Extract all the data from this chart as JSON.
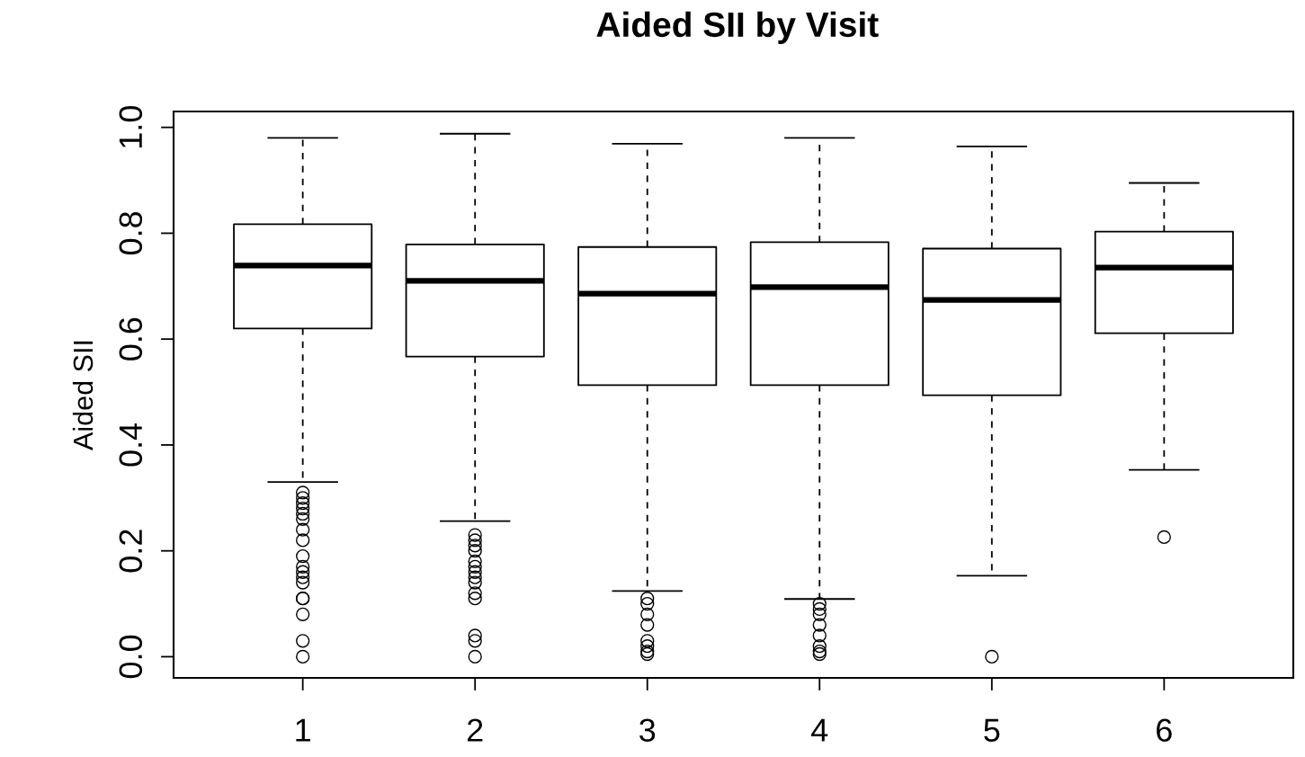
{
  "chart_data": {
    "type": "box",
    "title": "Aided SII by Visit",
    "ylabel": "Aided SII",
    "categories": [
      "1",
      "2",
      "3",
      "4",
      "5",
      "6"
    ],
    "ylim": [
      -0.04,
      1.03
    ],
    "yticks": [
      {
        "value": 0,
        "label": "0.0"
      },
      {
        "value": 0.2,
        "label": "0.2"
      },
      {
        "value": 0.4,
        "label": "0.4"
      },
      {
        "value": 0.6,
        "label": "0.6"
      },
      {
        "value": 0.8,
        "label": "0.8"
      },
      {
        "value": 1.0,
        "label": "1.0"
      }
    ],
    "grid": false,
    "marker": "circle",
    "boxes": [
      {
        "low": 0.33,
        "q1": 0.62,
        "median": 0.739,
        "q3": 0.817,
        "high": 0.98,
        "outliers": [
          0.31,
          0.3,
          0.29,
          0.28,
          0.27,
          0.26,
          0.24,
          0.22,
          0.19,
          0.17,
          0.16,
          0.15,
          0.14,
          0.11,
          0.11,
          0.08,
          0.03,
          0.0
        ]
      },
      {
        "low": 0.256,
        "q1": 0.567,
        "median": 0.71,
        "q3": 0.779,
        "high": 0.988,
        "outliers": [
          0.23,
          0.22,
          0.21,
          0.2,
          0.18,
          0.17,
          0.16,
          0.15,
          0.14,
          0.12,
          0.11,
          0.04,
          0.03,
          0.0
        ]
      },
      {
        "low": 0.124,
        "q1": 0.513,
        "median": 0.686,
        "q3": 0.774,
        "high": 0.969,
        "outliers": [
          0.11,
          0.1,
          0.08,
          0.06,
          0.03,
          0.02,
          0.01,
          0.005
        ]
      },
      {
        "low": 0.109,
        "q1": 0.513,
        "median": 0.698,
        "q3": 0.783,
        "high": 0.98,
        "outliers": [
          0.1,
          0.09,
          0.08,
          0.06,
          0.04,
          0.02,
          0.01,
          0.005
        ]
      },
      {
        "low": 0.153,
        "q1": 0.494,
        "median": 0.674,
        "q3": 0.771,
        "high": 0.964,
        "outliers": [
          0.0
        ]
      },
      {
        "low": 0.353,
        "q1": 0.611,
        "median": 0.735,
        "q3": 0.803,
        "high": 0.895,
        "outliers": [
          0.226
        ]
      }
    ]
  }
}
